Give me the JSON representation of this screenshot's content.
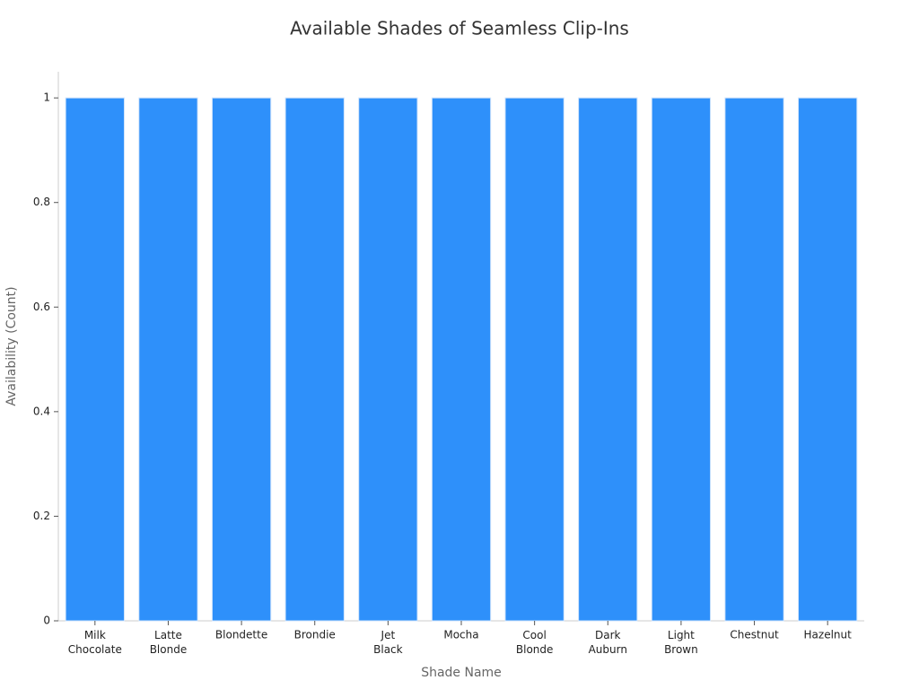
{
  "chart_data": {
    "type": "bar",
    "title": "Available Shades of Seamless Clip-Ins",
    "x_label": "Shade Name",
    "y_label": "Availability (Count)",
    "categories": [
      "Milk Chocolate",
      "Latte Blonde",
      "Blondette",
      "Brondie",
      "Jet Black",
      "Mocha",
      "Cool Blonde",
      "Dark Auburn",
      "Light Brown",
      "Chestnut",
      "Hazelnut"
    ],
    "values": [
      1,
      1,
      1,
      1,
      1,
      1,
      1,
      1,
      1,
      1,
      1
    ],
    "color": "#2e90fa",
    "ylim": [
      0,
      1.05
    ],
    "yticks": [
      0,
      0.2,
      0.4,
      0.6,
      0.8,
      1
    ],
    "grid": false
  }
}
